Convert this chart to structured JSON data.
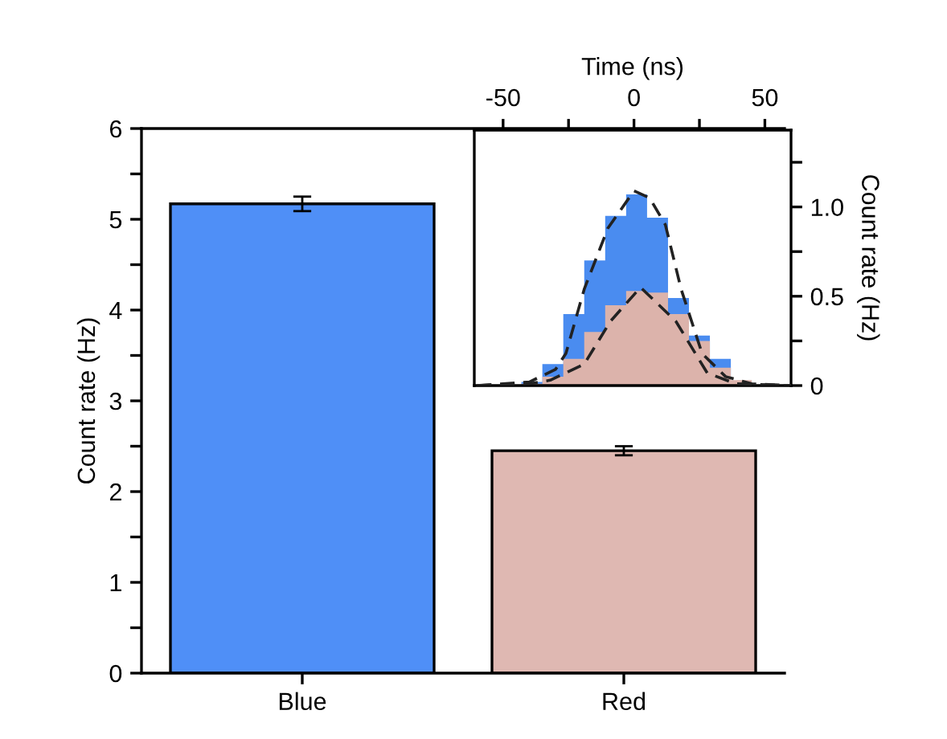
{
  "chart_data": [
    {
      "type": "bar",
      "ylabel": "Count rate (Hz)",
      "categories": [
        "Blue",
        "Red"
      ],
      "values": [
        5.17,
        2.45
      ],
      "errors": [
        0.08,
        0.05
      ],
      "colors": [
        "#4f8ff7",
        "#dfb8b2"
      ],
      "ylim": [
        0,
        6
      ],
      "yticks": [
        0,
        {
          "value": 0.5,
          "label": null
        },
        1,
        {
          "value": 1.5,
          "label": null
        },
        2,
        {
          "value": 2.5,
          "label": null
        },
        3,
        {
          "value": 3.5,
          "label": null
        },
        4,
        {
          "value": 4.5,
          "label": null
        },
        5,
        {
          "value": 5.5,
          "label": null
        },
        6
      ]
    },
    {
      "type": "histogram",
      "xlabel": "Time (ns)",
      "ylabel": "Count rate (Hz)",
      "bins": [
        -43,
        -35,
        -27,
        -19,
        -11,
        -3,
        5,
        13,
        21,
        29,
        37,
        45
      ],
      "series": [
        {
          "color": "#4a8cf0",
          "values": [
            0.02,
            0.12,
            0.4,
            0.7,
            0.95,
            1.07,
            0.94,
            0.49,
            0.28,
            0.15,
            0.0
          ]
        },
        {
          "color": "#dcb3ab",
          "values": [
            0.01,
            0.05,
            0.15,
            0.3,
            0.45,
            0.53,
            0.52,
            0.4,
            0.25,
            0.1,
            0.03
          ]
        },
        {
          "type": "line",
          "color": "#222222",
          "line_style": "dashed",
          "x": [
            -60,
            -40,
            -30,
            -26,
            -19,
            -10,
            0,
            6,
            12,
            18,
            26,
            35,
            45,
            60
          ],
          "values": [
            0,
            0.02,
            0.09,
            0.18,
            0.54,
            0.88,
            1.09,
            1.05,
            0.9,
            0.54,
            0.18,
            0.05,
            0.01,
            0
          ]
        },
        {
          "type": "line",
          "color": "#222222",
          "line_style": "dashed",
          "x": [
            -60,
            -40,
            -32,
            -19,
            -9,
            2.5,
            16,
            28,
            39,
            60
          ],
          "values": [
            0,
            0.01,
            0.03,
            0.12,
            0.36,
            0.55,
            0.36,
            0.07,
            0.01,
            0
          ]
        }
      ],
      "xlim": [
        -61,
        60
      ],
      "xticks": [
        -50,
        {
          "value": -25,
          "label": null
        },
        0,
        {
          "value": 25,
          "label": null
        },
        50
      ],
      "ylim": [
        0,
        1.43
      ],
      "yticks": [
        0,
        {
          "value": 0.25,
          "label": null
        },
        0.5,
        {
          "value": 0.75,
          "label": null
        },
        {
          "value": 1.0,
          "label": "1.0"
        },
        {
          "value": 1.25,
          "label": null
        }
      ]
    }
  ]
}
